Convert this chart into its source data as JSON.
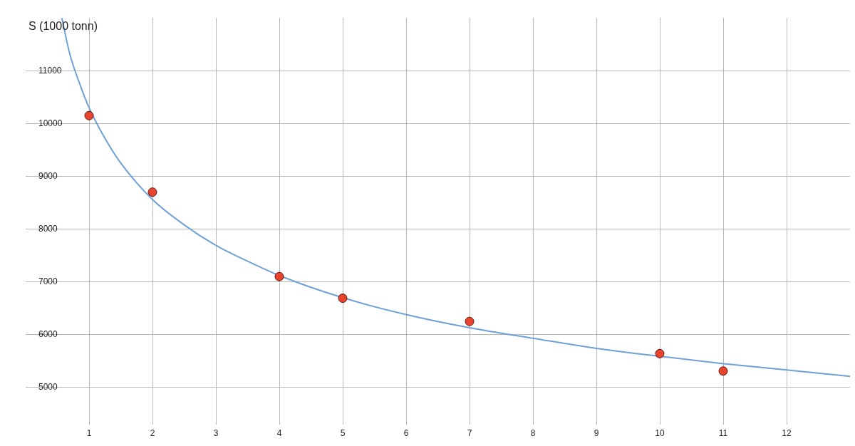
{
  "chart_data": {
    "type": "scatter",
    "ylabel": "S (1000 tonn)",
    "xlim": [
      0,
      13
    ],
    "xticks": [
      1,
      2,
      3,
      4,
      5,
      6,
      7,
      8,
      9,
      10,
      11,
      12
    ],
    "ylim": [
      4300,
      12000
    ],
    "yticks": [
      5000,
      6000,
      7000,
      8000,
      9000,
      10000,
      11000
    ],
    "grid": true,
    "legend": false,
    "marker": "circle",
    "series": [
      {
        "type": "line",
        "color": "#6fa0d8",
        "marker": "none",
        "x": [
          0.57,
          0.7,
          0.85,
          1,
          1.25,
          1.5,
          2,
          2.5,
          3,
          3.5,
          4,
          5,
          6,
          7,
          8,
          9,
          10,
          11,
          12,
          13
        ],
        "values": [
          12000,
          11300,
          10760,
          10300,
          9720,
          9250,
          8560,
          8080,
          7690,
          7390,
          7120,
          6700,
          6380,
          6130,
          5930,
          5740,
          5590,
          5450,
          5330,
          5210
        ]
      },
      {
        "type": "scatter",
        "color": "#e8432e",
        "x": [
          1,
          2,
          4,
          5,
          7,
          10,
          11
        ],
        "values": [
          10150,
          8700,
          7100,
          6690,
          6250,
          5640,
          5310
        ]
      }
    ]
  }
}
